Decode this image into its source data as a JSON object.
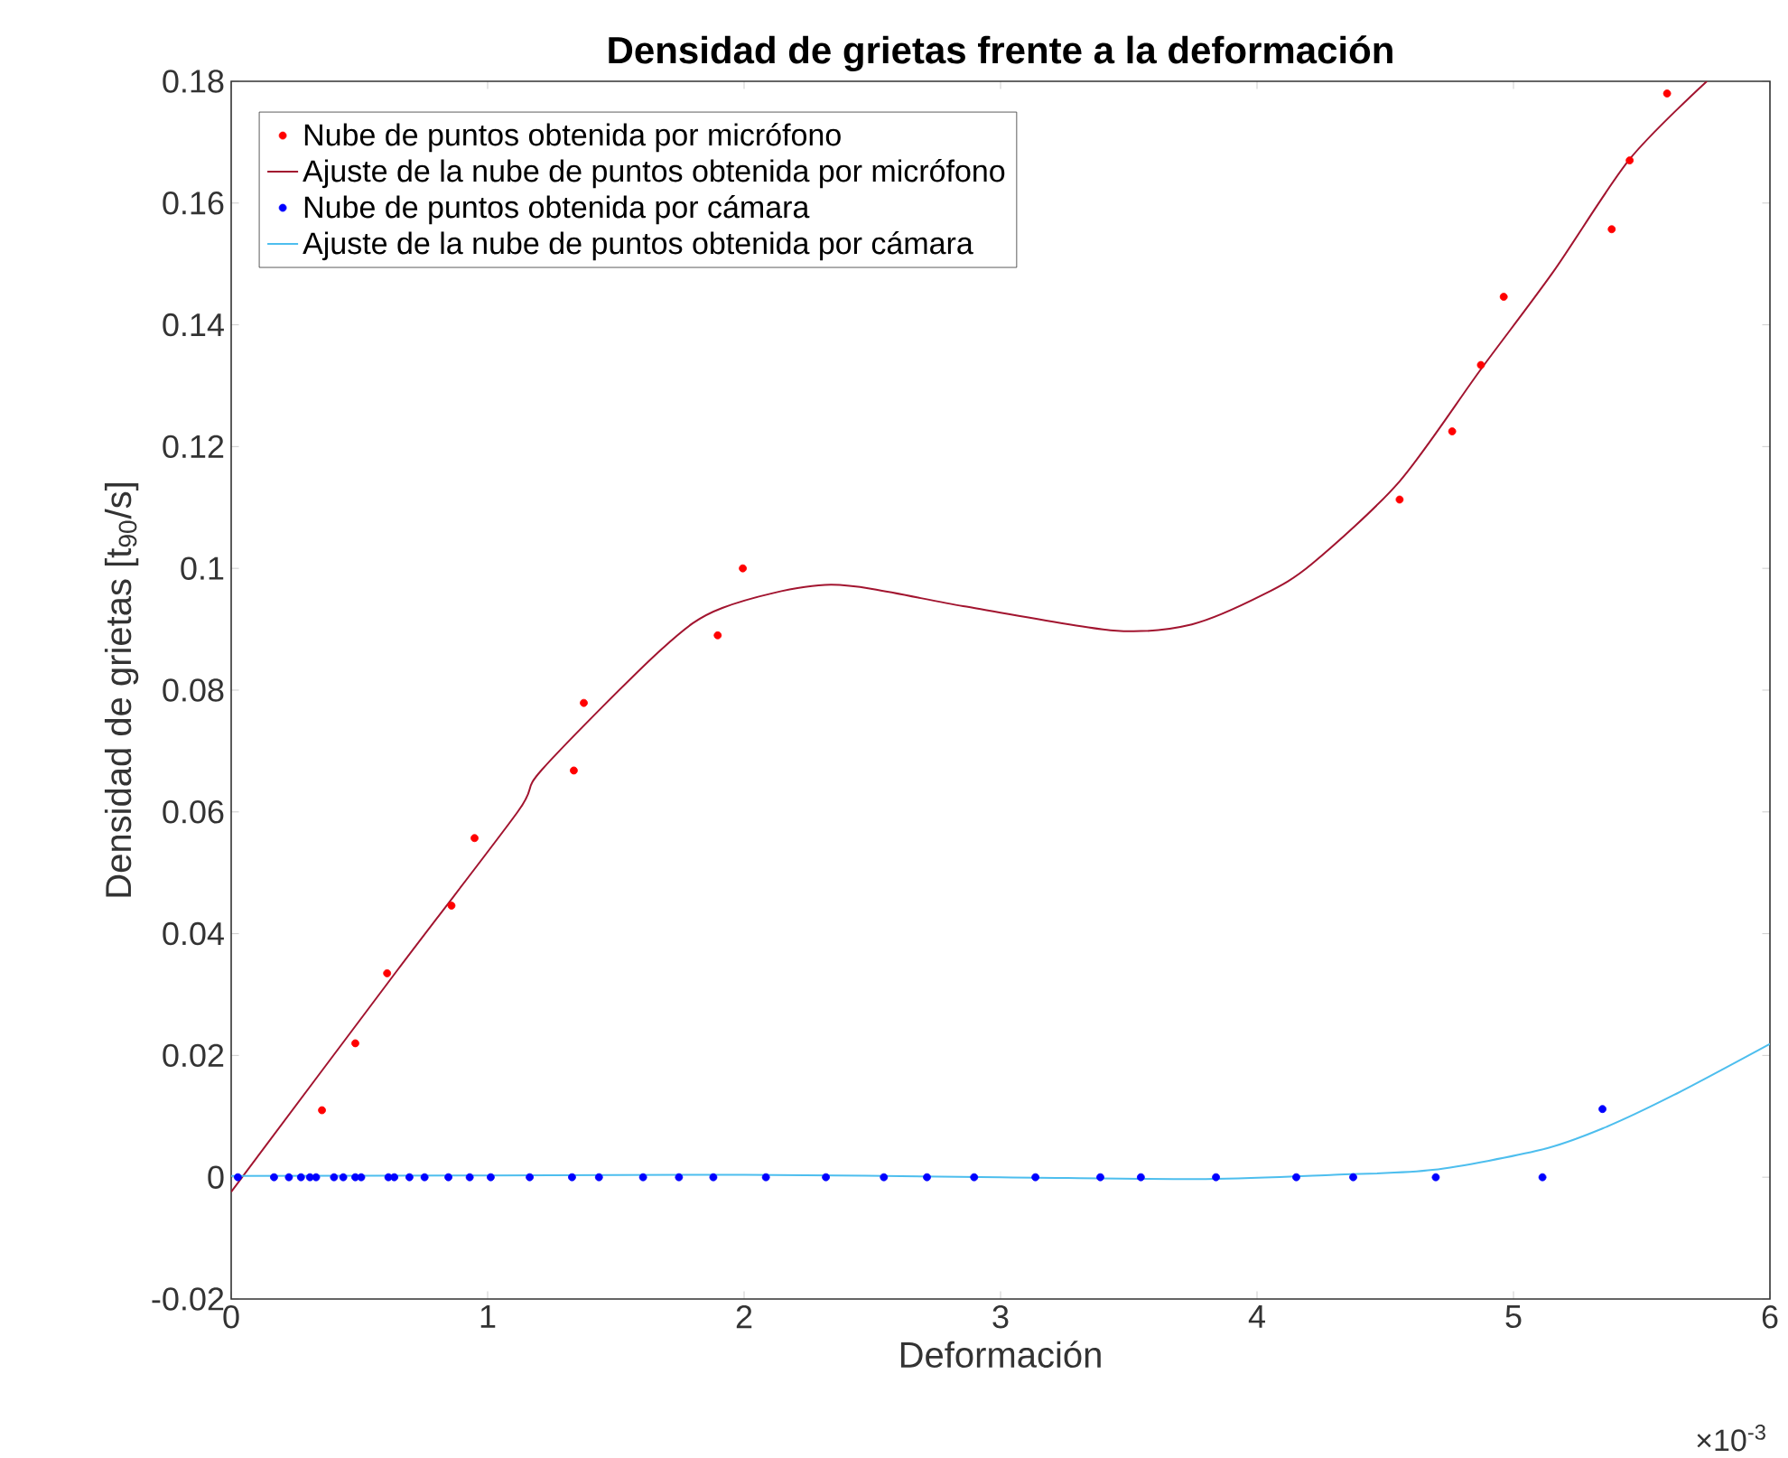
{
  "chart_data": {
    "type": "scatter",
    "title": "Densidad de grietas frente a la deformación",
    "xlabel": "Deformación",
    "ylabel": "Densidad de grietas [t$_{90}$/s]",
    "annotations": [
      "×10$^{-3}$"
    ],
    "xlim": [
      0,
      6
    ],
    "xticks": [
      0,
      1,
      2,
      3,
      4,
      5,
      6
    ],
    "ylim": [
      -0.02,
      0.18
    ],
    "yticks": [
      -0.02,
      0,
      0.02,
      0.04,
      0.06,
      0.08,
      0.1,
      0.12,
      0.14,
      0.16,
      0.18
    ],
    "legend": "top left",
    "series": [
      {
        "name": "Nube de puntos obtenida por micrófono",
        "marker": "circle",
        "color": "#ff0000",
        "x": [
          0.354,
          0.484,
          0.608,
          0.859,
          0.949,
          1.336,
          1.375,
          1.897,
          1.995,
          4.556,
          4.761,
          4.873,
          4.962,
          5.383,
          5.453,
          5.599
        ],
        "values": [
          0.011,
          0.022,
          0.0335,
          0.0446,
          0.0557,
          0.0668,
          0.0779,
          0.089,
          0.1,
          0.1113,
          0.1225,
          0.1334,
          0.1446,
          0.1557,
          0.167,
          0.178
        ]
      },
      {
        "name": "Ajuste de la nube de puntos obtenida por micrófono",
        "type": "line",
        "marker": "none",
        "line_style": "solid",
        "color": "#a2142f",
        "x": [
          0,
          0.648,
          1.117,
          1.211,
          1.68,
          1.915,
          2.338,
          2.854,
          3.44,
          3.746,
          4.03,
          4.216,
          4.556,
          4.873,
          5.155,
          5.453,
          5.754
        ],
        "values": [
          -0.0024,
          0.034,
          0.06,
          0.0669,
          0.0868,
          0.0935,
          0.0973,
          0.0938,
          0.0898,
          0.0908,
          0.0958,
          0.1008,
          0.1143,
          0.1327,
          0.1487,
          0.1672,
          0.18
        ]
      },
      {
        "name": "Nube de puntos obtenida por cámara",
        "marker": "circle",
        "color": "#0000ff",
        "x": [
          0.026,
          0.167,
          0.225,
          0.272,
          0.307,
          0.331,
          0.401,
          0.437,
          0.484,
          0.507,
          0.613,
          0.636,
          0.695,
          0.754,
          0.847,
          0.93,
          1.012,
          1.164,
          1.329,
          1.434,
          1.606,
          1.746,
          1.88,
          2.085,
          2.319,
          2.545,
          2.713,
          2.897,
          3.136,
          3.389,
          3.547,
          3.84,
          4.153,
          4.375,
          4.697,
          5.113,
          5.347
        ],
        "values": [
          0,
          0,
          0,
          0,
          0,
          0,
          0,
          0,
          0,
          0,
          0,
          0,
          0,
          0,
          0,
          0,
          0,
          0,
          0,
          0,
          0,
          0,
          0,
          0,
          0,
          0,
          0,
          0,
          0,
          0,
          0,
          0,
          0,
          0,
          0,
          0,
          0.0112
        ]
      },
      {
        "name": "Ajuste de la nube de puntos obtenida por cámara",
        "type": "line",
        "marker": "none",
        "line_style": "solid",
        "color": "#4dbeee",
        "x": [
          0,
          1,
          2,
          3,
          3.8,
          4.3,
          4.685,
          5.108,
          5.347,
          5.625,
          6
        ],
        "values": [
          0.0002,
          0.0003,
          0.0004,
          0,
          -0.0003,
          0.0004,
          0.0012,
          0.0045,
          0.008,
          0.0135,
          0.0219
        ]
      }
    ]
  }
}
